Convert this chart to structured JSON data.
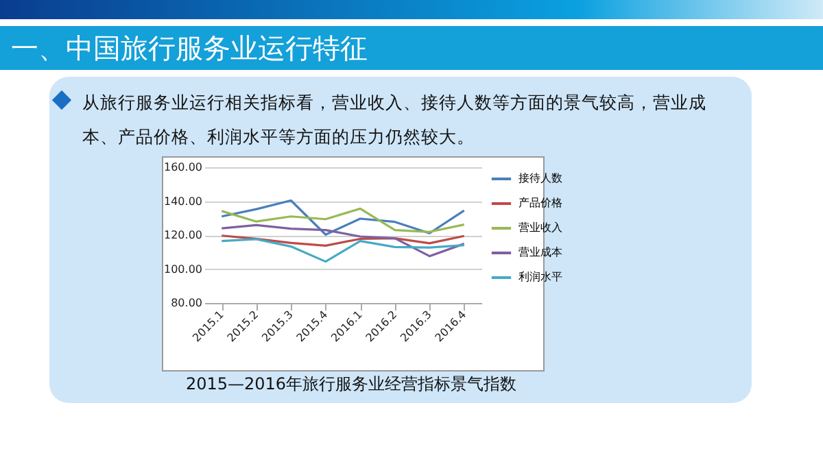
{
  "chart_data": {
    "type": "line",
    "title": "一、中国旅行服务业运行特征",
    "subtitle": "从旅行服务业运行相关指标看，营业收入、接待人数等方面的景气较高，营业成本、产品价格、利润水平等方面的压力仍然较大。",
    "annotations": [
      "2015—2016年旅行服务业经营指标景气指数"
    ],
    "categories": [
      "2015.1",
      "2015.2",
      "2015.3",
      "2015.4",
      "2016.1",
      "2016.2",
      "2016.3",
      "2016.4"
    ],
    "series": [
      {
        "name": "接待人数",
        "color": "#4a7ebb",
        "values": [
          131,
          135.3,
          140.4,
          120.3,
          129.7,
          127.8,
          121.1,
          134.5
        ]
      },
      {
        "name": "产品价格",
        "color": "#be4b48",
        "values": [
          119.7,
          117.8,
          115.4,
          113.8,
          117.8,
          118.1,
          115.2,
          119.5
        ]
      },
      {
        "name": "营业收入",
        "color": "#98b954",
        "values": [
          134.2,
          128,
          131,
          129.4,
          135.6,
          123,
          121.9,
          126.2
        ]
      },
      {
        "name": "营业成本",
        "color": "#7d60a0",
        "values": [
          124,
          125.9,
          123.8,
          123,
          119.2,
          118.1,
          107.6,
          114.9
        ]
      },
      {
        "name": "利润水平",
        "color": "#46aac5",
        "values": [
          116.5,
          117.6,
          113.3,
          104.4,
          116.5,
          113,
          112.7,
          114.1
        ]
      }
    ],
    "ylim": [
      80,
      160
    ],
    "yticks": [
      {
        "value": 80,
        "label": "80.00"
      },
      {
        "value": 100,
        "label": "100.00"
      },
      {
        "value": 120,
        "label": "120.00"
      },
      {
        "value": 140,
        "label": "140.00"
      },
      {
        "value": 160,
        "label": "160.00"
      }
    ],
    "grid": "y",
    "legend": "right",
    "marker": "none",
    "line_style": "solid"
  }
}
